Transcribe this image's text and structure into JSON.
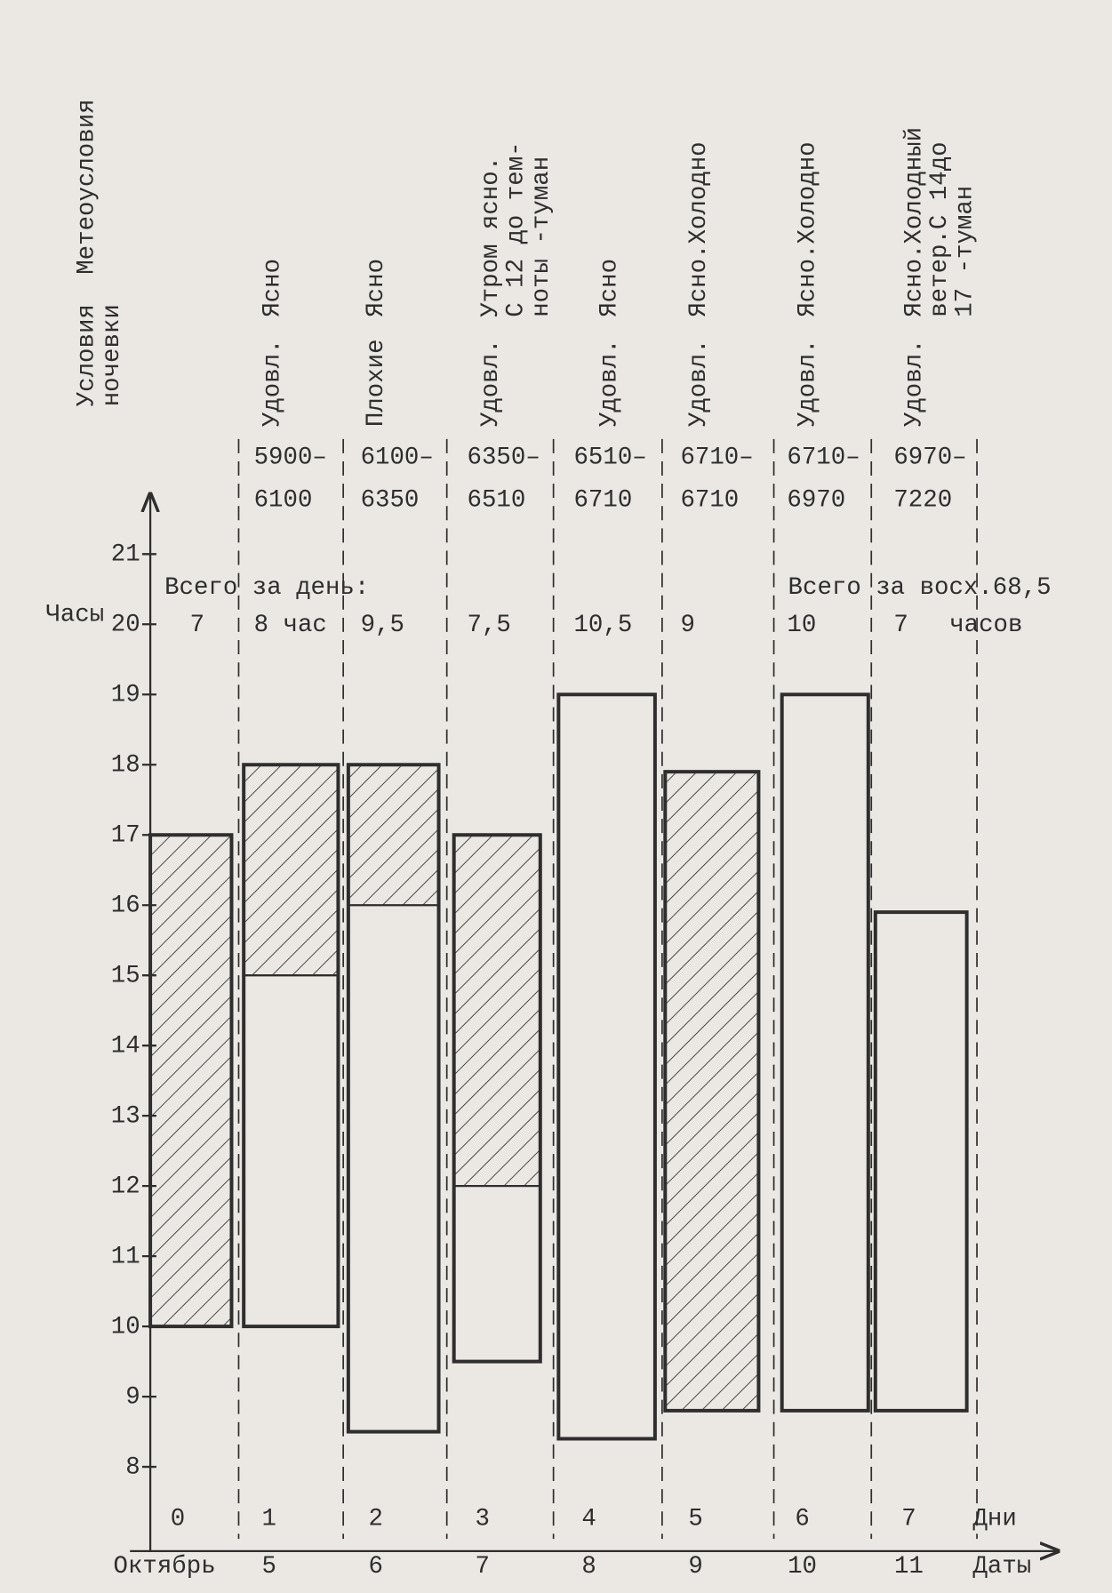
{
  "chart_data": {
    "type": "range-bar",
    "header_conditions": "Условия",
    "header_weather": "Метеоусловия",
    "header_conditions_2": "ночевки",
    "y_label": "Часы",
    "x_label": "Дни",
    "date_label": "Даты",
    "categories": [
      "0",
      "1",
      "2",
      "3",
      "4",
      "5",
      "6",
      "7"
    ],
    "dates": [
      "Октябрь",
      "5",
      "6",
      "7",
      "8",
      "9",
      "10",
      "11"
    ],
    "start": [
      10,
      10,
      8.5,
      9.5,
      8.4,
      8.8,
      8.8,
      8.8
    ],
    "end": [
      17,
      18,
      18,
      17,
      19,
      17.9,
      19,
      15.9
    ],
    "hatch_from": [
      10,
      15,
      16,
      12,
      null,
      8.8,
      null,
      null
    ],
    "hatch_to": [
      17,
      18,
      18,
      17,
      null,
      17.9,
      null,
      null
    ],
    "total_label": "Всего за день:",
    "totals": [
      "7",
      "8 час",
      "9,5",
      "7,5",
      "10,5",
      "9",
      "10",
      "7"
    ],
    "grand_total": "Всего за восх.68,5",
    "grand_total_unit": "часов",
    "conditions": [
      "Удовл.",
      "Плохие",
      "Удовл.",
      "Удовл.",
      "Удовл.",
      "Удовл.",
      "Удовл."
    ],
    "weather": [
      [
        "Ясно"
      ],
      [
        "Ясно"
      ],
      [
        "Утром ясно.",
        "С 12 до тем-",
        "ноты -туман"
      ],
      [
        "Ясно"
      ],
      [
        "Ясно.Холодно"
      ],
      [
        "Ясно.Холодно"
      ],
      [
        "Ясно.Холодный",
        "ветер.С 14до",
        "17 -туман"
      ]
    ],
    "altitudes": [
      [
        "5900–",
        "6100"
      ],
      [
        "6100–",
        "6350"
      ],
      [
        "6350–",
        "6510"
      ],
      [
        "6510–",
        "6710"
      ],
      [
        "6710–",
        "6710"
      ],
      [
        "6710–",
        "6970"
      ],
      [
        "6970–",
        "7220"
      ]
    ],
    "ylim": [
      6.8,
      21.8
    ],
    "yticks": [
      8,
      9,
      10,
      11,
      12,
      13,
      14,
      15,
      16,
      17,
      18,
      19,
      20,
      21
    ],
    "color": "#2e2e2e",
    "hatch": true
  }
}
